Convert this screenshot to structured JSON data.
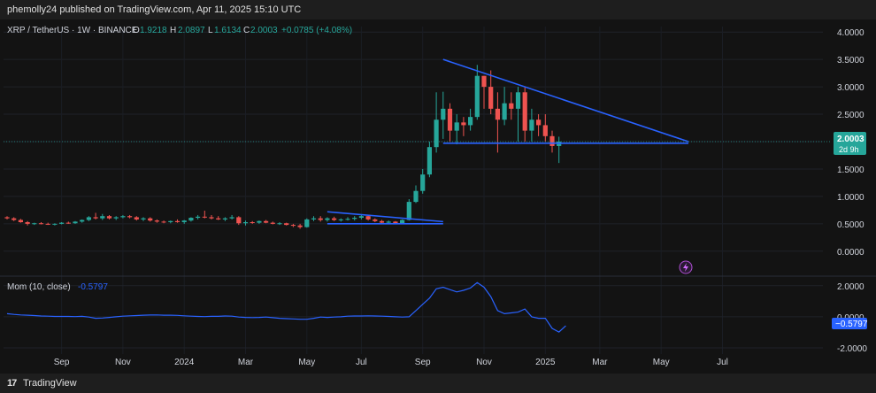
{
  "header": {
    "published": "phemolly24 published on TradingView.com, Apr 11, 2025 15:10 UTC"
  },
  "legend": {
    "symbol": "XRP / TetherUS · 1W · BINANCE",
    "o_label": "O",
    "o_val": "1.9218",
    "h_label": "H",
    "h_val": "2.0897",
    "l_label": "L",
    "l_val": "1.6134",
    "c_label": "C",
    "c_val": "2.0003",
    "change": "+0.0785 (+4.08%)"
  },
  "price_badge": {
    "value": "2.0003",
    "countdown": "2d 9h"
  },
  "indicator": {
    "label": "Mom (10, close)",
    "value": "-0.5797",
    "badge": "−0.5797"
  },
  "footer": {
    "brand": "TradingView"
  },
  "colors": {
    "up": "#26a69a",
    "down": "#ef5350",
    "trendline": "#2962ff",
    "momentum": "#2962ff",
    "background": "#131313"
  },
  "chart_data": [
    {
      "type": "candlestick",
      "title": "XRP / TetherUS · 1W · BINANCE",
      "y_ticks": [
        "4.0000",
        "3.5000",
        "3.0000",
        "2.5000",
        "2.0000",
        "1.5000",
        "1.0000",
        "0.5000",
        "0.0000"
      ],
      "ylim": [
        -0.1,
        4.1
      ],
      "x_ticks": [
        "Sep",
        "Nov",
        "2024",
        "Mar",
        "May",
        "Jul",
        "Sep",
        "Nov",
        "2025",
        "Mar",
        "May",
        "Jul"
      ],
      "candles": [
        {
          "o": 0.62,
          "h": 0.64,
          "l": 0.58,
          "c": 0.6
        },
        {
          "o": 0.6,
          "h": 0.62,
          "l": 0.55,
          "c": 0.57
        },
        {
          "o": 0.57,
          "h": 0.59,
          "l": 0.52,
          "c": 0.53
        },
        {
          "o": 0.53,
          "h": 0.55,
          "l": 0.47,
          "c": 0.5
        },
        {
          "o": 0.5,
          "h": 0.52,
          "l": 0.48,
          "c": 0.51
        },
        {
          "o": 0.51,
          "h": 0.53,
          "l": 0.49,
          "c": 0.5
        },
        {
          "o": 0.5,
          "h": 0.52,
          "l": 0.48,
          "c": 0.49
        },
        {
          "o": 0.49,
          "h": 0.51,
          "l": 0.47,
          "c": 0.5
        },
        {
          "o": 0.5,
          "h": 0.53,
          "l": 0.49,
          "c": 0.52
        },
        {
          "o": 0.52,
          "h": 0.54,
          "l": 0.5,
          "c": 0.51
        },
        {
          "o": 0.51,
          "h": 0.55,
          "l": 0.5,
          "c": 0.54
        },
        {
          "o": 0.54,
          "h": 0.58,
          "l": 0.52,
          "c": 0.57
        },
        {
          "o": 0.57,
          "h": 0.64,
          "l": 0.55,
          "c": 0.62
        },
        {
          "o": 0.62,
          "h": 0.7,
          "l": 0.58,
          "c": 0.6
        },
        {
          "o": 0.6,
          "h": 0.68,
          "l": 0.57,
          "c": 0.64
        },
        {
          "o": 0.64,
          "h": 0.66,
          "l": 0.58,
          "c": 0.6
        },
        {
          "o": 0.6,
          "h": 0.64,
          "l": 0.57,
          "c": 0.62
        },
        {
          "o": 0.62,
          "h": 0.66,
          "l": 0.6,
          "c": 0.64
        },
        {
          "o": 0.64,
          "h": 0.66,
          "l": 0.6,
          "c": 0.62
        },
        {
          "o": 0.62,
          "h": 0.64,
          "l": 0.56,
          "c": 0.58
        },
        {
          "o": 0.58,
          "h": 0.62,
          "l": 0.55,
          "c": 0.6
        },
        {
          "o": 0.6,
          "h": 0.62,
          "l": 0.54,
          "c": 0.56
        },
        {
          "o": 0.56,
          "h": 0.58,
          "l": 0.52,
          "c": 0.54
        },
        {
          "o": 0.54,
          "h": 0.56,
          "l": 0.51,
          "c": 0.53
        },
        {
          "o": 0.53,
          "h": 0.56,
          "l": 0.51,
          "c": 0.55
        },
        {
          "o": 0.55,
          "h": 0.58,
          "l": 0.52,
          "c": 0.53
        },
        {
          "o": 0.53,
          "h": 0.57,
          "l": 0.5,
          "c": 0.56
        },
        {
          "o": 0.56,
          "h": 0.62,
          "l": 0.54,
          "c": 0.61
        },
        {
          "o": 0.61,
          "h": 0.66,
          "l": 0.58,
          "c": 0.63
        },
        {
          "o": 0.63,
          "h": 0.74,
          "l": 0.6,
          "c": 0.62
        },
        {
          "o": 0.62,
          "h": 0.66,
          "l": 0.58,
          "c": 0.6
        },
        {
          "o": 0.6,
          "h": 0.64,
          "l": 0.57,
          "c": 0.58
        },
        {
          "o": 0.58,
          "h": 0.62,
          "l": 0.55,
          "c": 0.6
        },
        {
          "o": 0.6,
          "h": 0.66,
          "l": 0.58,
          "c": 0.62
        },
        {
          "o": 0.62,
          "h": 0.64,
          "l": 0.48,
          "c": 0.51
        },
        {
          "o": 0.51,
          "h": 0.56,
          "l": 0.47,
          "c": 0.53
        },
        {
          "o": 0.53,
          "h": 0.55,
          "l": 0.5,
          "c": 0.52
        },
        {
          "o": 0.52,
          "h": 0.56,
          "l": 0.5,
          "c": 0.55
        },
        {
          "o": 0.55,
          "h": 0.57,
          "l": 0.51,
          "c": 0.52
        },
        {
          "o": 0.52,
          "h": 0.54,
          "l": 0.49,
          "c": 0.5
        },
        {
          "o": 0.5,
          "h": 0.53,
          "l": 0.48,
          "c": 0.51
        },
        {
          "o": 0.51,
          "h": 0.52,
          "l": 0.47,
          "c": 0.48
        },
        {
          "o": 0.48,
          "h": 0.5,
          "l": 0.44,
          "c": 0.47
        },
        {
          "o": 0.47,
          "h": 0.5,
          "l": 0.41,
          "c": 0.44
        },
        {
          "o": 0.44,
          "h": 0.6,
          "l": 0.43,
          "c": 0.58
        },
        {
          "o": 0.58,
          "h": 0.64,
          "l": 0.55,
          "c": 0.6
        },
        {
          "o": 0.6,
          "h": 0.64,
          "l": 0.54,
          "c": 0.57
        },
        {
          "o": 0.57,
          "h": 0.62,
          "l": 0.54,
          "c": 0.6
        },
        {
          "o": 0.6,
          "h": 0.63,
          "l": 0.55,
          "c": 0.57
        },
        {
          "o": 0.57,
          "h": 0.6,
          "l": 0.54,
          "c": 0.58
        },
        {
          "o": 0.58,
          "h": 0.62,
          "l": 0.56,
          "c": 0.59
        },
        {
          "o": 0.59,
          "h": 0.64,
          "l": 0.56,
          "c": 0.61
        },
        {
          "o": 0.61,
          "h": 0.66,
          "l": 0.58,
          "c": 0.64
        },
        {
          "o": 0.64,
          "h": 0.66,
          "l": 0.56,
          "c": 0.58
        },
        {
          "o": 0.58,
          "h": 0.6,
          "l": 0.53,
          "c": 0.55
        },
        {
          "o": 0.55,
          "h": 0.57,
          "l": 0.51,
          "c": 0.52
        },
        {
          "o": 0.52,
          "h": 0.56,
          "l": 0.51,
          "c": 0.54
        },
        {
          "o": 0.54,
          "h": 0.55,
          "l": 0.5,
          "c": 0.51
        },
        {
          "o": 0.51,
          "h": 0.58,
          "l": 0.5,
          "c": 0.57
        },
        {
          "o": 0.57,
          "h": 0.95,
          "l": 0.56,
          "c": 0.9
        },
        {
          "o": 0.9,
          "h": 1.2,
          "l": 0.88,
          "c": 1.1
        },
        {
          "o": 1.1,
          "h": 1.5,
          "l": 1.05,
          "c": 1.4
        },
        {
          "o": 1.4,
          "h": 2.0,
          "l": 1.35,
          "c": 1.9
        },
        {
          "o": 1.9,
          "h": 2.9,
          "l": 1.8,
          "c": 2.4
        },
        {
          "o": 2.4,
          "h": 2.91,
          "l": 2.05,
          "c": 2.6
        },
        {
          "o": 2.6,
          "h": 2.7,
          "l": 2.0,
          "c": 2.2
        },
        {
          "o": 2.2,
          "h": 2.5,
          "l": 1.95,
          "c": 2.35
        },
        {
          "o": 2.35,
          "h": 2.45,
          "l": 2.1,
          "c": 2.3
        },
        {
          "o": 2.3,
          "h": 2.6,
          "l": 2.2,
          "c": 2.45
        },
        {
          "o": 2.45,
          "h": 3.4,
          "l": 2.4,
          "c": 3.2
        },
        {
          "o": 3.2,
          "h": 3.2,
          "l": 2.6,
          "c": 3.0
        },
        {
          "o": 3.0,
          "h": 3.3,
          "l": 2.5,
          "c": 2.6
        },
        {
          "o": 2.6,
          "h": 2.9,
          "l": 1.8,
          "c": 2.4
        },
        {
          "o": 2.4,
          "h": 3.0,
          "l": 2.3,
          "c": 2.7
        },
        {
          "o": 2.7,
          "h": 2.9,
          "l": 2.4,
          "c": 2.6
        },
        {
          "o": 2.6,
          "h": 3.0,
          "l": 2.0,
          "c": 2.9
        },
        {
          "o": 2.9,
          "h": 3.0,
          "l": 2.0,
          "c": 2.2
        },
        {
          "o": 2.2,
          "h": 2.6,
          "l": 2.0,
          "c": 2.4
        },
        {
          "o": 2.4,
          "h": 2.5,
          "l": 2.1,
          "c": 2.3
        },
        {
          "o": 2.3,
          "h": 2.5,
          "l": 2.0,
          "c": 2.1
        },
        {
          "o": 2.1,
          "h": 2.2,
          "l": 1.8,
          "c": 1.92
        },
        {
          "o": 1.92,
          "h": 2.09,
          "l": 1.61,
          "c": 2.0
        }
      ],
      "annotations": [
        {
          "type": "line",
          "label": "triangle top",
          "from": {
            "index": 64,
            "price": 3.5
          },
          "to": {
            "index": 100,
            "price": 2.0
          }
        },
        {
          "type": "line",
          "label": "triangle base",
          "from": {
            "index": 64,
            "price": 1.97
          },
          "to": {
            "index": 100,
            "price": 1.97
          }
        },
        {
          "type": "line",
          "label": "wedge top",
          "from": {
            "index": 47,
            "price": 0.72
          },
          "to": {
            "index": 64,
            "price": 0.54
          }
        },
        {
          "type": "line",
          "label": "wedge base",
          "from": {
            "index": 47,
            "price": 0.5
          },
          "to": {
            "index": 64,
            "price": 0.5
          }
        }
      ],
      "current_price": 2.0003
    },
    {
      "type": "line",
      "title": "Mom (10, close)",
      "y_ticks": [
        "2.0000",
        "0.0000",
        "-2.0000"
      ],
      "ylim": [
        -2.4,
        2.5
      ],
      "series": [
        {
          "values": [
            0.2,
            0.15,
            0.12,
            0.1,
            0.08,
            0.05,
            0.04,
            0.02,
            0.02,
            0.02,
            0.01,
            0.03,
            -0.02,
            -0.1,
            -0.08,
            -0.04,
            0.0,
            0.04,
            0.06,
            0.08,
            0.1,
            0.11,
            0.12,
            0.1,
            0.1,
            0.09,
            0.06,
            0.04,
            0.02,
            0.01,
            0.03,
            0.03,
            0.05,
            0.04,
            -0.02,
            -0.04,
            -0.05,
            -0.04,
            -0.02,
            -0.06,
            -0.1,
            -0.12,
            -0.14,
            -0.16,
            -0.16,
            -0.1,
            -0.02,
            -0.04,
            -0.02,
            0.0,
            0.04,
            0.05,
            0.05,
            0.06,
            0.05,
            0.04,
            0.02,
            0.0,
            -0.02,
            0.0,
            0.4,
            0.8,
            1.2,
            1.8,
            1.9,
            1.75,
            1.6,
            1.7,
            1.85,
            2.2,
            1.9,
            1.3,
            0.4,
            0.2,
            0.25,
            0.3,
            0.5,
            0.0,
            -0.1,
            -0.1,
            -0.75,
            -0.98,
            -0.58
          ]
        }
      ]
    }
  ]
}
